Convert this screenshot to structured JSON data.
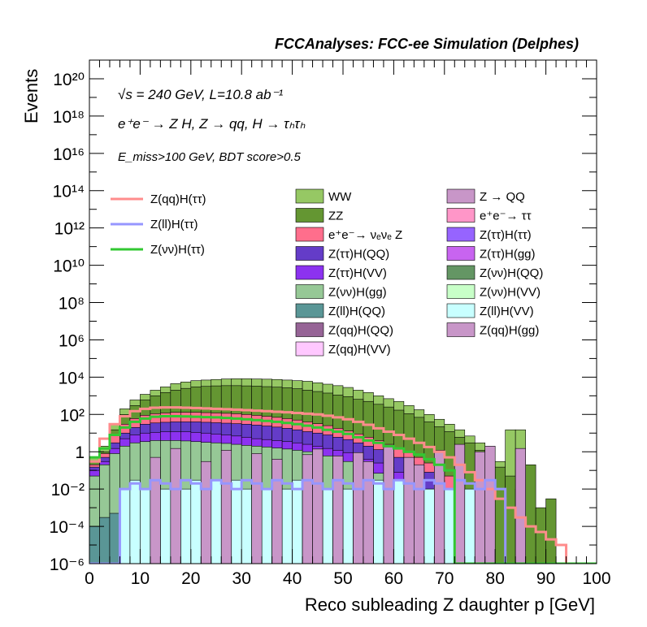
{
  "header": "FCCAnalyses: FCC-ee Simulation (Delphes)",
  "annotations": {
    "line1": "√s = 240 GeV, L=10.8 ab⁻¹",
    "line2": "e⁺e⁻ → Z H, Z → qq, H → τₕτₕ",
    "line3": "E_miss>100 GeV, BDT score>0.5"
  },
  "chart_data": {
    "type": "bar",
    "xlabel": "Reco subleading Z daughter p [GeV]",
    "ylabel": "Events",
    "xlim": [
      0,
      100
    ],
    "ylim": [
      1e-06,
      1e+21
    ],
    "log_y": true,
    "grid": false,
    "bin_width": 2,
    "x_ticks": [
      "0",
      "10",
      "20",
      "30",
      "40",
      "50",
      "60",
      "70",
      "80",
      "90",
      "100"
    ],
    "y_ticks": [
      "10⁻⁶",
      "10⁻⁴",
      "10⁻²",
      "1",
      "10²",
      "10⁴",
      "10⁶",
      "10⁸",
      "10¹⁰",
      "10¹²",
      "10¹⁴",
      "10¹⁶",
      "10¹⁸",
      "10²⁰"
    ],
    "stack_bands": [
      {
        "name": "WW",
        "color": "#96c864",
        "top": [
          0.5,
          2,
          30,
          200,
          600,
          1200,
          2000,
          3000,
          4500,
          5500,
          6500,
          7000,
          7500,
          8000,
          8200,
          8200,
          8000,
          7800,
          7500,
          7000,
          6500,
          6000,
          5000,
          4200,
          3500,
          2800,
          2000,
          1500,
          1000,
          700,
          500,
          300,
          180,
          100,
          55,
          30,
          15,
          7,
          3,
          1.2,
          0.3,
          15,
          15,
          0,
          0,
          0,
          0,
          0,
          0,
          0
        ]
      },
      {
        "name": "ZZ",
        "color": "#649632",
        "top": [
          0.3,
          1,
          15,
          100,
          300,
          600,
          1000,
          1500,
          2000,
          2500,
          3000,
          3200,
          3400,
          3500,
          3500,
          3400,
          3300,
          3100,
          2900,
          2700,
          2400,
          2000,
          1700,
          1400,
          1100,
          900,
          650,
          500,
          350,
          250,
          170,
          110,
          70,
          40,
          22,
          12,
          6,
          3,
          1.2,
          0.5,
          0.15,
          0.05,
          0.01,
          0.2,
          0.001,
          0.003,
          0,
          0,
          0,
          0
        ]
      },
      {
        "name": "e⁺e⁻→ νₑνₑ Z",
        "color": "#ff6e8c",
        "top": [
          0.2,
          0.8,
          8,
          30,
          60,
          90,
          110,
          120,
          130,
          130,
          130,
          125,
          120,
          115,
          110,
          100,
          90,
          80,
          70,
          60,
          50,
          40,
          32,
          25,
          18,
          13,
          9,
          6,
          4,
          2.5,
          1.5,
          0.9,
          0.5,
          0.25,
          0.12,
          0.05,
          0.02,
          0.008,
          0.002,
          0.0005,
          0,
          0,
          0,
          0,
          0,
          0,
          0,
          0,
          0,
          0
        ]
      },
      {
        "name": "Z(ττ)H(QQ)",
        "color": "#643cc8",
        "top": [
          0.15,
          0.5,
          3,
          10,
          20,
          30,
          35,
          38,
          40,
          40,
          40,
          38,
          36,
          34,
          32,
          30,
          27,
          24,
          21,
          18,
          15,
          12,
          10,
          8,
          6,
          4.5,
          3,
          2,
          1.3,
          0.8,
          0.5,
          0.3,
          0.15,
          0.08,
          0.03,
          0.01,
          0.003,
          0.001,
          0.0003,
          0.0001,
          0,
          0,
          0,
          0,
          0,
          0,
          0,
          0,
          0,
          0
        ]
      },
      {
        "name": "Z(ττ)H(VV)",
        "color": "#8c32f0",
        "top": [
          0.1,
          0.3,
          1.5,
          5,
          8,
          10,
          11,
          12,
          12,
          12,
          11,
          10,
          9,
          8,
          7,
          6,
          5,
          4.5,
          4,
          3.5,
          3,
          2.5,
          2,
          1.5,
          1.2,
          0.9,
          0.6,
          0.4,
          0.25,
          0.15,
          0.08,
          0.04,
          0.02,
          0.01,
          0.004,
          0.001,
          0.0003,
          0.0001,
          0,
          0,
          0,
          0,
          0,
          0,
          0,
          0,
          0,
          0,
          0,
          0
        ]
      },
      {
        "name": "Z(νν)H(gg)",
        "color": "#96c896",
        "top": [
          0.05,
          0.2,
          0.8,
          2,
          3,
          3.5,
          4,
          4,
          4,
          3.8,
          3.5,
          3.2,
          3,
          2.8,
          2.5,
          2.2,
          2,
          1.8,
          1.6,
          1.4,
          1.2,
          1,
          0.8,
          0.6,
          0.45,
          0.3,
          0.2,
          0.12,
          0.07,
          0.04,
          0.02,
          0.01,
          0.005,
          0.002,
          0.0008,
          0.0003,
          0.0001,
          0,
          0,
          0,
          0,
          0,
          0,
          0,
          0,
          0,
          0,
          0,
          0,
          0
        ]
      },
      {
        "name": "Z(ll)H(QQ)",
        "color": "#5a9696",
        "top": [
          0.0001,
          0.0003,
          0.0005,
          0.001,
          0.002,
          0.002,
          0.003,
          0.003,
          0.003,
          0.003,
          0.003,
          0.003,
          0.003,
          0.003,
          0.003,
          0.002,
          0.002,
          0.002,
          0.002,
          0.002,
          0.0015,
          0.0012,
          0.001,
          0.0008,
          0.0006,
          0.0005,
          0.0004,
          0.0003,
          0.0002,
          0.0001,
          8e-05,
          5e-05,
          3e-05,
          2e-05,
          1e-05,
          5e-06,
          3e-06,
          2e-06,
          1e-06,
          0,
          0,
          0,
          0,
          0,
          0,
          0,
          0,
          0,
          0,
          0
        ]
      },
      {
        "name": "Z(ll)H(VV)",
        "color": "#c8ffff",
        "top": [
          0,
          0,
          0,
          0.01,
          0.03,
          0.01,
          0.03,
          0.01,
          0.03,
          0.01,
          0.03,
          0.01,
          0.03,
          0.01,
          0.03,
          0.01,
          0.03,
          0.01,
          0.03,
          0.01,
          0.03,
          0.01,
          0.03,
          0.01,
          0.03,
          0.01,
          0.03,
          0.01,
          0.03,
          0.01,
          0.03,
          0.01,
          0.03,
          0.01,
          0.03,
          0.01,
          0.03,
          0.01,
          0.03,
          0.01,
          0,
          0,
          0,
          0,
          0,
          0,
          0,
          0,
          0,
          0
        ]
      }
    ],
    "spikes": [
      {
        "name": "Z(qq)H(QQ)",
        "color": "#c896c8",
        "bins": [
          6,
          8,
          11,
          13,
          16,
          18,
          21,
          22,
          24,
          26,
          27,
          29,
          31,
          32,
          34,
          36,
          38,
          39,
          42
        ],
        "heights": [
          0.5,
          1.5,
          0.3,
          1.2,
          0.8,
          0.4,
          0.7,
          1.4,
          0.6,
          0.9,
          0.3,
          1.8,
          0.5,
          0.2,
          1.2,
          2.5,
          1.0,
          2.0,
          1.5
        ]
      }
    ],
    "overlay_lines": [
      {
        "name": "Z(qq)H(ττ)",
        "color": "#ff8c8c",
        "values": [
          0.3,
          5,
          30,
          80,
          150,
          200,
          230,
          240,
          240,
          230,
          220,
          210,
          200,
          190,
          180,
          170,
          160,
          150,
          140,
          130,
          120,
          110,
          100,
          85,
          70,
          55,
          40,
          28,
          18,
          12,
          8,
          5,
          3,
          1.8,
          1,
          0.5,
          0.2,
          0.08,
          0.03,
          0.01,
          0.003,
          0.001,
          0.0003,
          0.0001,
          5e-05,
          2e-05,
          1e-05,
          0,
          0,
          0
        ]
      },
      {
        "name": "Z(ll)H(ττ)",
        "color": "#9696ff",
        "values": [
          1e-06,
          1e-06,
          1e-06,
          0.01,
          0.02,
          0.01,
          0.03,
          0.02,
          0.01,
          0.03,
          0.02,
          0.01,
          0.03,
          0.02,
          0.01,
          0.03,
          0.02,
          0.01,
          0.03,
          0.02,
          0.01,
          0.03,
          0.02,
          0.01,
          0.03,
          0.02,
          0.01,
          0.03,
          0.02,
          0.01,
          0.03,
          0.02,
          0.01,
          0.03,
          0.02,
          0.01,
          0.03,
          0.02,
          0.01,
          0.03,
          0.01,
          1e-06,
          1e-06,
          1e-06,
          1e-06,
          1e-06,
          1e-06,
          1e-06,
          1e-06,
          1e-06
        ]
      },
      {
        "name": "Z(νν)H(ττ)",
        "color": "#32c832",
        "values": [
          0.5,
          1.5,
          8,
          20,
          40,
          60,
          75,
          80,
          80,
          78,
          75,
          72,
          70,
          65,
          60,
          55,
          50,
          45,
          40,
          35,
          30,
          25,
          20,
          15,
          12,
          9,
          6,
          4,
          3,
          2,
          1.5,
          1,
          0.7,
          0.4,
          0.2,
          0.1,
          1e-06,
          1e-06,
          1e-06,
          1e-06,
          1e-06,
          1e-06,
          1e-06,
          1e-06,
          1e-06,
          1e-06,
          1e-06,
          1e-06,
          1e-06,
          1e-06
        ]
      }
    ],
    "legend_lines": [
      {
        "name": "Z(qq)H(ττ)",
        "color": "#ff8c8c"
      },
      {
        "name": "Z(ll)H(ττ)",
        "color": "#9696ff"
      },
      {
        "name": "Z(νν)H(ττ)",
        "color": "#32c832"
      }
    ],
    "legend_boxes_col1": [
      {
        "name": "WW",
        "color": "#96c864"
      },
      {
        "name": "ZZ",
        "color": "#649632"
      },
      {
        "name": "e⁺e⁻→ νₑνₑ Z",
        "color": "#ff6e8c"
      },
      {
        "name": "Z(ττ)H(QQ)",
        "color": "#643cc8"
      },
      {
        "name": "Z(ττ)H(VV)",
        "color": "#8c32f0"
      },
      {
        "name": "Z(νν)H(gg)",
        "color": "#96c896"
      },
      {
        "name": "Z(ll)H(QQ)",
        "color": "#5a9696"
      },
      {
        "name": "Z(qq)H(QQ)",
        "color": "#966496"
      },
      {
        "name": "Z(qq)H(VV)",
        "color": "#ffc8ff"
      }
    ],
    "legend_boxes_col2": [
      {
        "name": "Z → QQ",
        "color": "#c896c8"
      },
      {
        "name": "e⁺e⁻→ ττ",
        "color": "#ff96c8"
      },
      {
        "name": "Z(ττ)H(ττ)",
        "color": "#9664ff"
      },
      {
        "name": "Z(ττ)H(gg)",
        "color": "#c864f0"
      },
      {
        "name": "Z(νν)H(QQ)",
        "color": "#649664"
      },
      {
        "name": "Z(νν)H(VV)",
        "color": "#c8ffc8"
      },
      {
        "name": "Z(ll)H(VV)",
        "color": "#c8ffff"
      },
      {
        "name": "Z(qq)H(gg)",
        "color": "#c896c8"
      }
    ]
  }
}
